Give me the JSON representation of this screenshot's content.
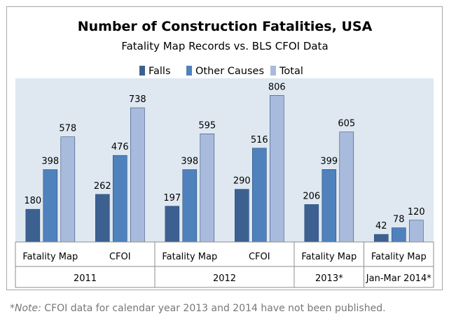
{
  "chart_data": {
    "type": "bar",
    "title": "Number of Construction Fatalities, USA",
    "subtitle": "Fatality Map Records vs. BLS CFOI Data",
    "legend_position": "top",
    "categories": [
      "Fatality Map",
      "CFOI",
      "Fatality Map",
      "CFOI",
      "Fatality Map",
      "Fatality Map"
    ],
    "groups": [
      {
        "label": "2011",
        "categories": 2
      },
      {
        "label": "2012",
        "categories": 2
      },
      {
        "label": "2013*",
        "categories": 1
      },
      {
        "label": "Jan-Mar 2014*",
        "categories": 1
      }
    ],
    "series": [
      {
        "name": "Falls",
        "color": "#3c6191",
        "values": [
          180,
          262,
          197,
          290,
          206,
          42
        ]
      },
      {
        "name": "Other Causes",
        "color": "#4f81bd",
        "values": [
          398,
          476,
          398,
          516,
          399,
          78
        ]
      },
      {
        "name": "Total",
        "color": "#a9bbdc",
        "values": [
          578,
          738,
          595,
          806,
          605,
          120
        ]
      }
    ],
    "ylim": [
      0,
      900
    ],
    "grid": false,
    "plot_background": "#dfe8f1"
  },
  "note": {
    "prefix": "*Note:",
    "text": " CFOI data for calendar year 2013 and 2014 have not been published."
  }
}
